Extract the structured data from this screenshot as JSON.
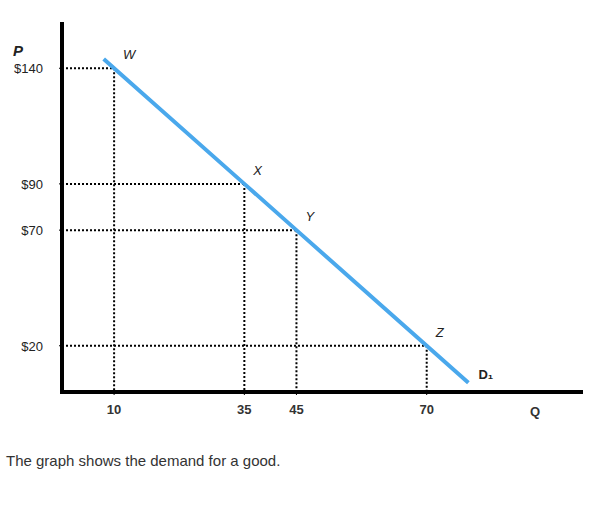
{
  "chart_data": {
    "type": "line",
    "caption": "The graph shows the demand for a good.",
    "x_label": "Q",
    "y_label": "P",
    "xlim": [
      0,
      100
    ],
    "ylim": [
      0,
      160
    ],
    "xticks": [
      10,
      35,
      45,
      70
    ],
    "yticks": [
      {
        "value": 20,
        "label": "$20"
      },
      {
        "value": 70,
        "label": "$70"
      },
      {
        "value": 90,
        "label": "$90"
      },
      {
        "value": 140,
        "label": "$140"
      }
    ],
    "grid": false,
    "series": [
      {
        "name": "D₁",
        "color": "#4aa8ec",
        "x": [
          8,
          10,
          35,
          45,
          70,
          78
        ],
        "values": [
          144,
          140,
          90,
          70,
          20,
          4
        ],
        "point_labels": [
          null,
          "W",
          "X",
          "Y",
          "Z",
          null
        ]
      }
    ]
  }
}
